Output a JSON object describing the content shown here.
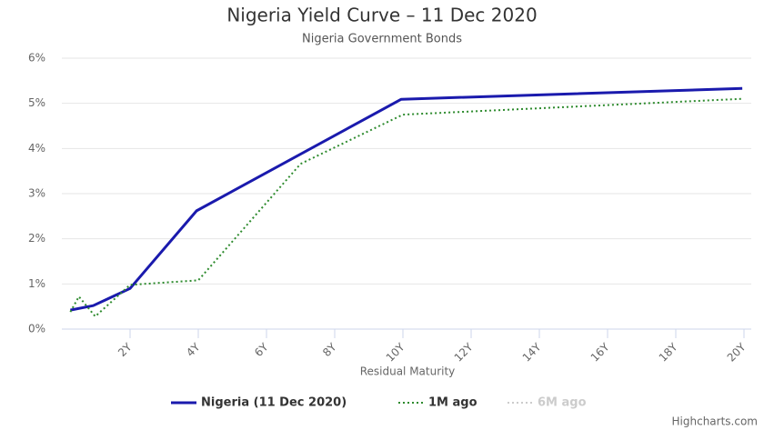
{
  "chart_data": {
    "type": "line",
    "title": "Nigeria Yield Curve – 11 Dec 2020",
    "subtitle": "Nigeria Government Bonds",
    "x_label": "Residual Maturity",
    "credits": "Highcharts.com",
    "xlim": [
      0,
      20
    ],
    "ylim": [
      0,
      6
    ],
    "xticks": [
      {
        "value": 2,
        "label": "2Y"
      },
      {
        "value": 4,
        "label": "4Y"
      },
      {
        "value": 6,
        "label": "6Y"
      },
      {
        "value": 8,
        "label": "8Y"
      },
      {
        "value": 10,
        "label": "10Y"
      },
      {
        "value": 12,
        "label": "12Y"
      },
      {
        "value": 14,
        "label": "14Y"
      },
      {
        "value": 16,
        "label": "16Y"
      },
      {
        "value": 18,
        "label": "18Y"
      },
      {
        "value": 20,
        "label": "20Y"
      }
    ],
    "yticks": [
      {
        "value": 0,
        "label": "0%"
      },
      {
        "value": 1,
        "label": "1%"
      },
      {
        "value": 2,
        "label": "2%"
      },
      {
        "value": 3,
        "label": "3%"
      },
      {
        "value": 4,
        "label": "4%"
      },
      {
        "value": 5,
        "label": "5%"
      },
      {
        "value": 6,
        "label": "6%"
      }
    ],
    "grid": true,
    "series": [
      {
        "name": "Nigeria (11 Dec 2020)",
        "color": "#1a1aad",
        "dash": "solid",
        "visible": true,
        "x": [
          0.25,
          0.92,
          2,
          3.95,
          9.95,
          19.95
        ],
        "values": [
          0.42,
          0.52,
          0.9,
          2.62,
          5.09,
          5.33
        ]
      },
      {
        "name": "1M ago",
        "color": "#2e8b2e",
        "dash": "dotted",
        "visible": true,
        "x": [
          0.25,
          0.5,
          0.98,
          2,
          4,
          7,
          10,
          19.95
        ],
        "values": [
          0.38,
          0.72,
          0.28,
          0.98,
          1.08,
          3.66,
          4.75,
          5.1
        ]
      },
      {
        "name": "6M ago",
        "color": "#cccccc",
        "dash": "dotted",
        "visible": false,
        "x": [],
        "values": []
      }
    ]
  }
}
